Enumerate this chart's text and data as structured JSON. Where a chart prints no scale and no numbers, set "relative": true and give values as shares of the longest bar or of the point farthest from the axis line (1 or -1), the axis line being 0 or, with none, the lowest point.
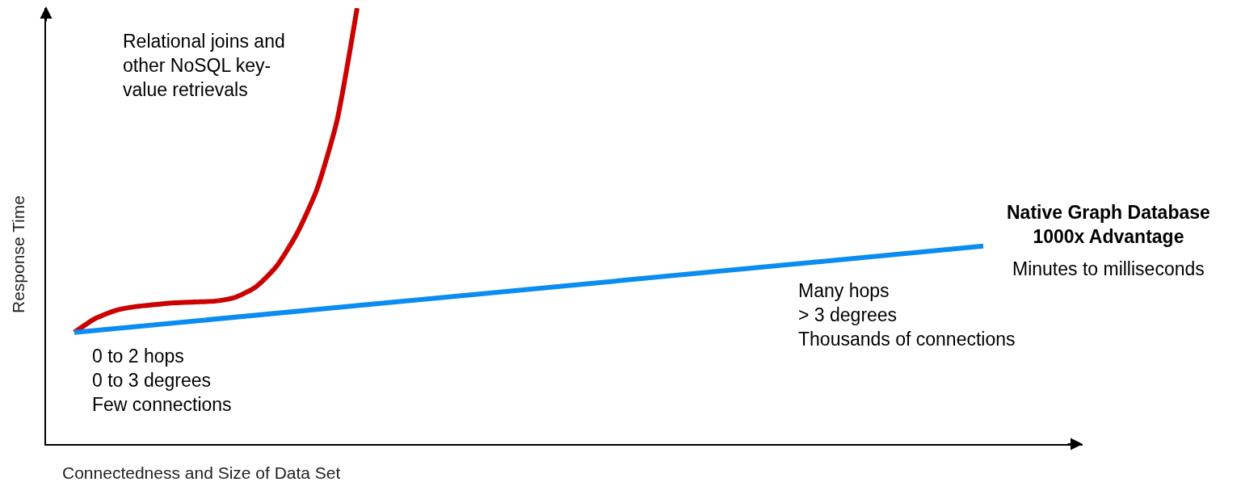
{
  "chart_data": {
    "type": "line",
    "relative": true,
    "xlabel": "Connectedness and Size of Data Set",
    "ylabel": "Response Time",
    "categories": [
      null,
      null,
      null,
      null,
      null,
      null,
      null,
      null,
      null,
      null,
      null,
      null,
      null,
      null,
      null,
      null,
      null,
      null,
      null,
      null,
      null,
      null,
      null,
      null,
      null,
      null,
      null,
      null,
      null,
      null,
      null,
      null,
      null,
      null,
      null,
      null,
      null,
      null,
      null,
      null,
      null,
      null,
      null,
      null,
      null,
      null,
      null,
      null
    ],
    "series": [
      {
        "color": "#cc0000",
        "values": [
          0.256,
          0.287,
          0.306,
          0.315,
          0.32,
          0.324,
          0.326,
          0.328,
          0.337,
          0.361,
          0.407,
          0.481,
          0.583,
          0.741,
          1.0,
          null,
          null,
          null,
          null,
          null,
          null,
          null,
          null,
          null,
          null,
          null,
          null,
          null,
          null,
          null,
          null,
          null,
          null,
          null,
          null,
          null,
          null,
          null,
          null,
          null,
          null,
          null,
          null,
          null,
          null,
          null,
          null,
          null
        ]
      },
      {
        "color": "#0a8cf0",
        "values": [
          0.256,
          null,
          null,
          null,
          null,
          null,
          null,
          null,
          null,
          null,
          null,
          null,
          null,
          null,
          null,
          null,
          null,
          null,
          null,
          null,
          null,
          null,
          null,
          null,
          null,
          null,
          null,
          null,
          null,
          null,
          null,
          null,
          null,
          null,
          null,
          null,
          null,
          null,
          null,
          null,
          null,
          null,
          null,
          null,
          null,
          0.454,
          null,
          null
        ]
      }
    ],
    "annotations": [
      "Relational joins and\nother NoSQL key-\nvalue retrievals",
      "0 to 2 hops\n0 to 3 degrees\nFew connections",
      "Native Graph Database\n1000x Advantage",
      "Minutes to milliseconds",
      "Many hops\n> 3 degrees\nThousands of connections"
    ],
    "legend": false,
    "marker": "none",
    "line_style": "solid"
  }
}
